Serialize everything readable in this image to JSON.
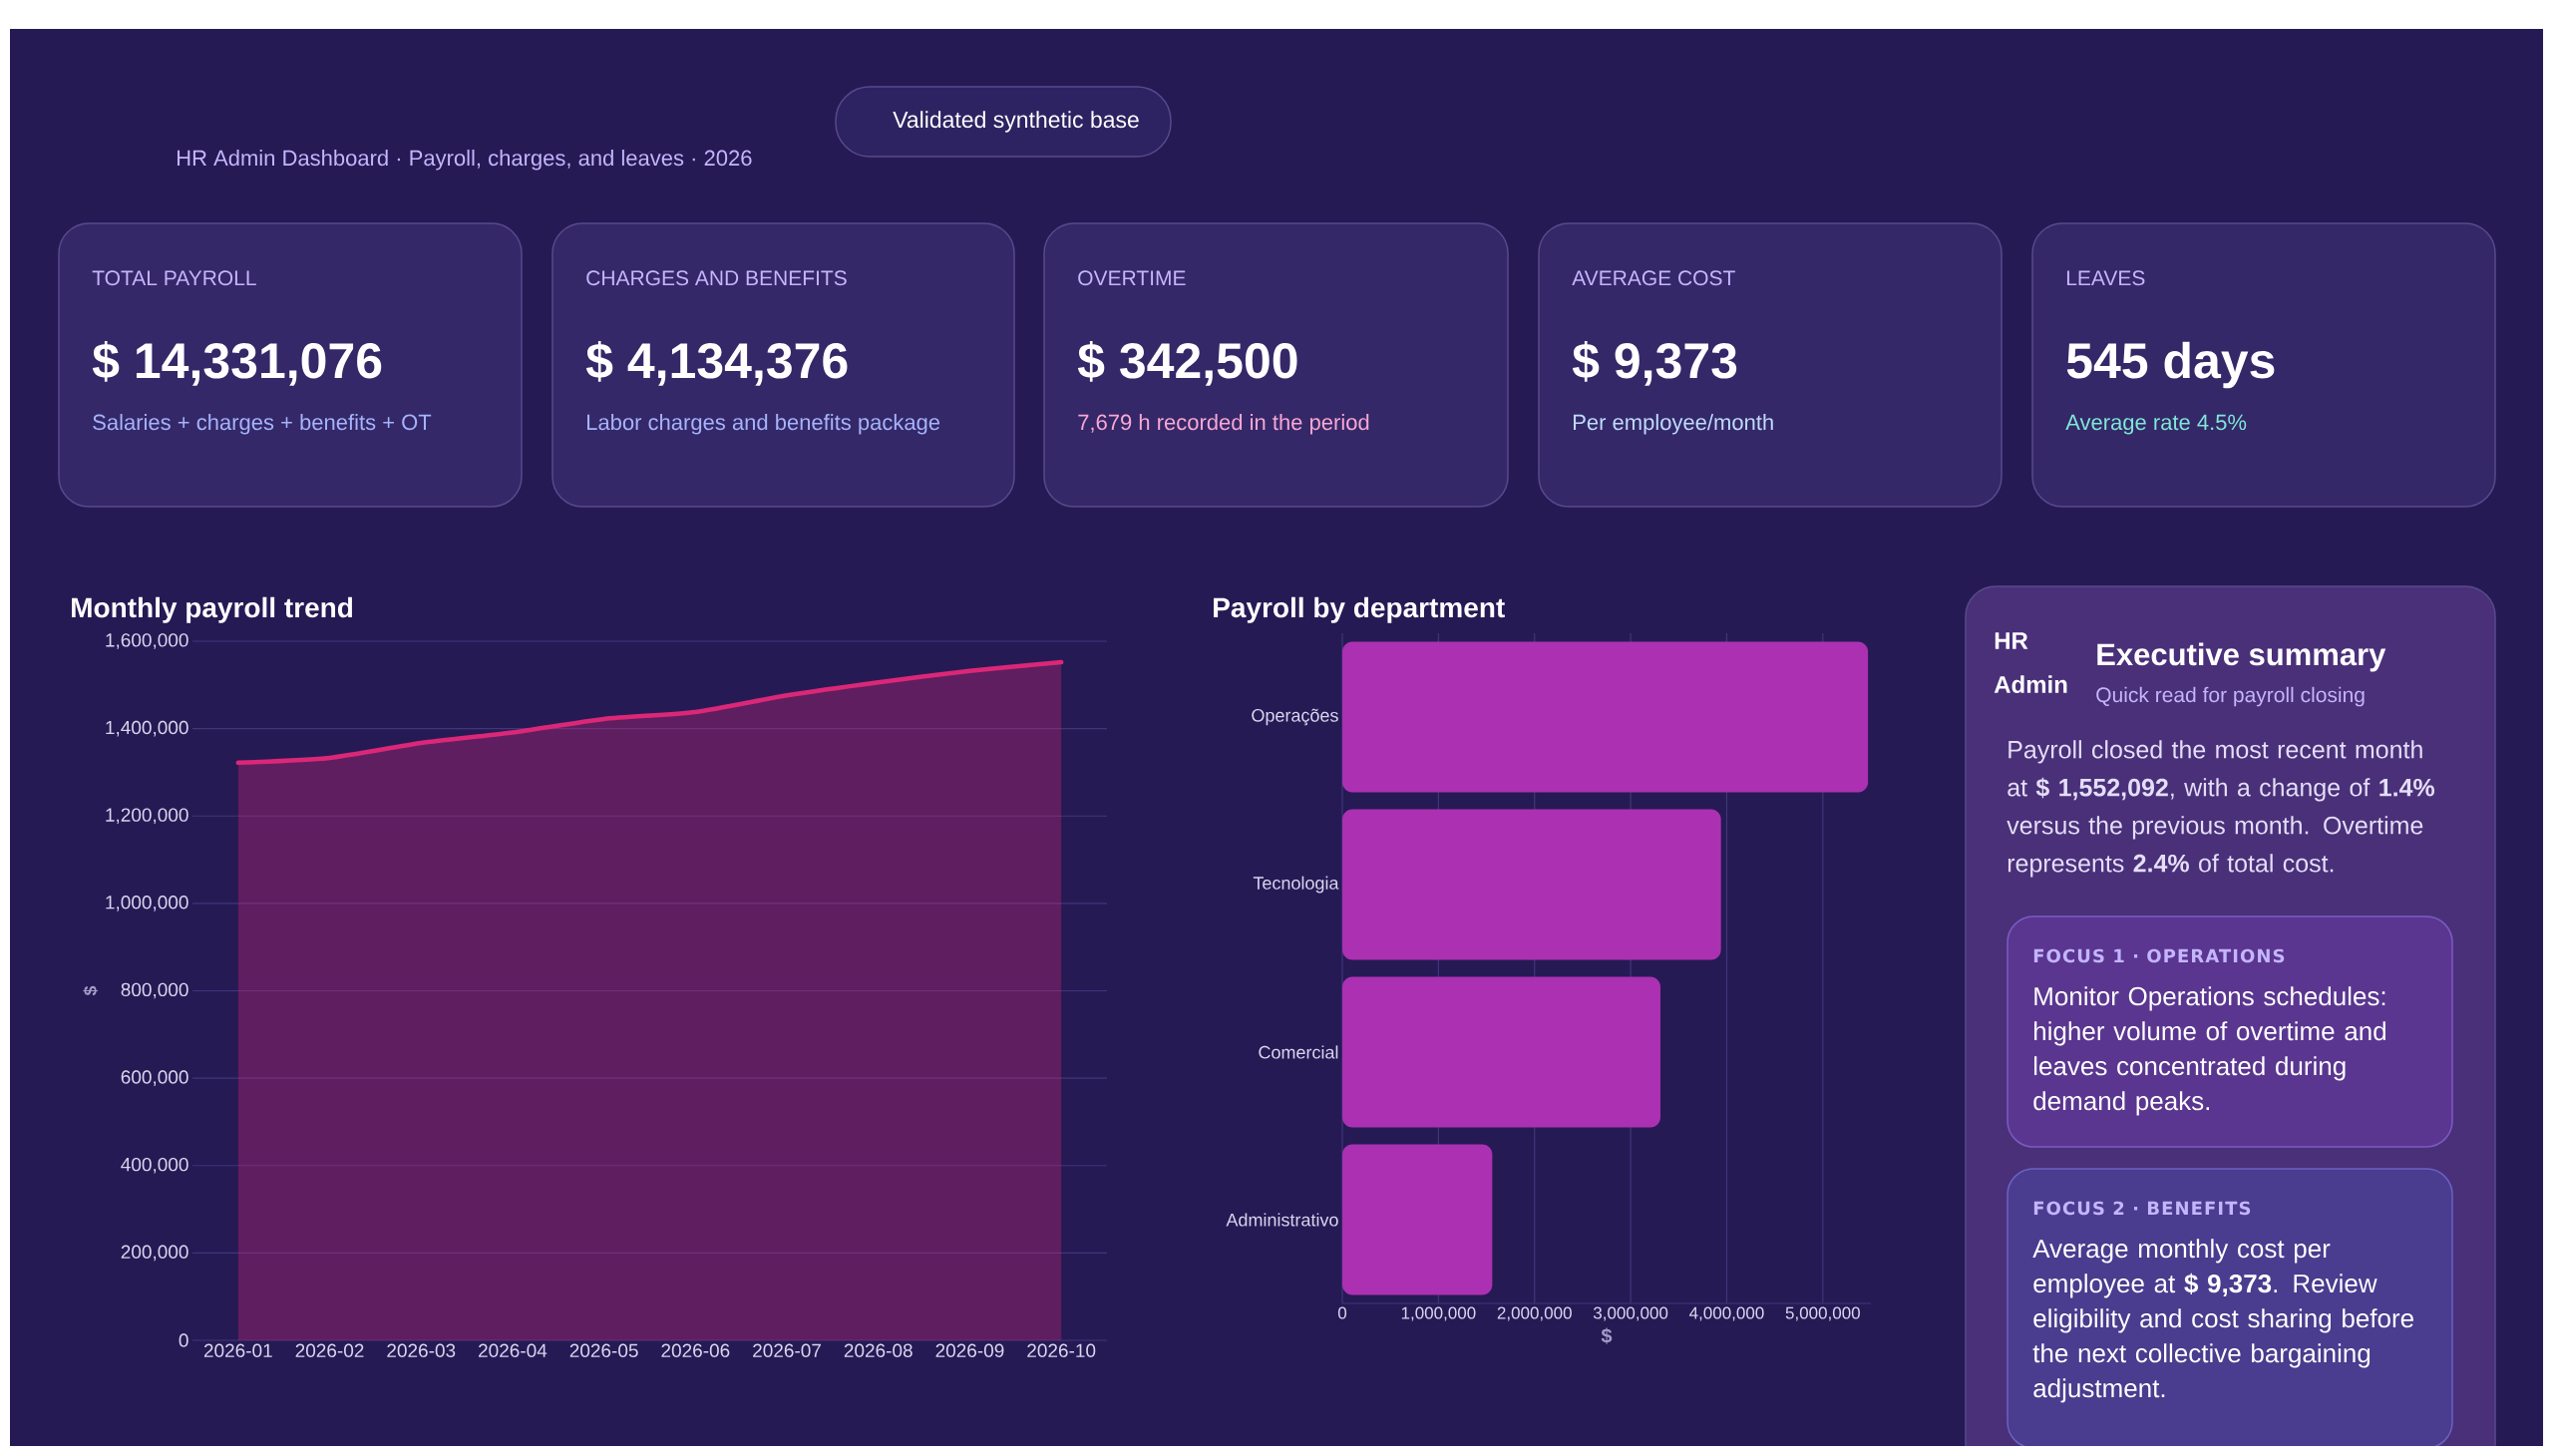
{
  "chart_data": [
    {
      "type": "other",
      "subtitle": "HR Admin Dashboard · Payroll, charges, and leaves · 2026",
      "annotations": [
        "Validated synthetic base"
      ]
    },
    {
      "type": "other",
      "title": "TOTAL PAYROLL",
      "annotations": [
        "$ 14,331,076",
        "Salaries + charges + benefits + OT"
      ]
    },
    {
      "type": "other",
      "title": "CHARGES AND BENEFITS",
      "annotations": [
        "$ 4,134,376",
        "Labor charges and benefits package"
      ]
    },
    {
      "type": "other",
      "title": "OVERTIME",
      "annotations": [
        "$ 342,500",
        "7,679 h recorded in the period"
      ]
    },
    {
      "type": "other",
      "title": "AVERAGE COST",
      "annotations": [
        "$ 9,373",
        "Per employee/month"
      ]
    },
    {
      "type": "other",
      "title": "LEAVES",
      "annotations": [
        "545 days",
        "Average rate 4.5%"
      ]
    },
    {
      "type": "area",
      "title": "Monthly payroll trend",
      "ylabel": "$",
      "categories": [
        "2026-01",
        "2026-02",
        "2026-03",
        "2026-04",
        "2026-05",
        "2026-06",
        "2026-07",
        "2026-08",
        "2026-09",
        "2026-10"
      ],
      "values": [
        1322000,
        1333000,
        1367000,
        1391000,
        1422000,
        1438000,
        1476000,
        1506000,
        1532000,
        1552000
      ],
      "color": "#db2777",
      "ylim": [
        0,
        1600000
      ],
      "yticks": [
        0,
        {
          "value": 200000,
          "label": "200,000"
        },
        {
          "value": 400000,
          "label": "400,000"
        },
        {
          "value": 600000,
          "label": "600,000"
        },
        {
          "value": 800000,
          "label": "800,000"
        },
        {
          "value": 1000000,
          "label": "1,000,000"
        },
        {
          "value": 1200000,
          "label": "1,200,000"
        },
        {
          "value": 1400000,
          "label": "1,400,000"
        },
        {
          "value": 1600000,
          "label": "1,600,000"
        }
      ],
      "grid": "y"
    },
    {
      "type": "bar",
      "orientation": "horizontal",
      "title": "Payroll by department",
      "xlabel": "$",
      "categories": [
        "Operações",
        "Tecnologia",
        "Comercial",
        "Administrativo"
      ],
      "values": [
        5470000,
        3940000,
        3310000,
        1560000
      ],
      "color": "#ab31b2",
      "xlim": [
        0,
        5500000
      ],
      "xticks": [
        0,
        {
          "value": 1000000,
          "label": "1,000,000"
        },
        {
          "value": 2000000,
          "label": "2,000,000"
        },
        {
          "value": 3000000,
          "label": "3,000,000"
        },
        {
          "value": 4000000,
          "label": "4,000,000"
        },
        {
          "value": 5000000,
          "label": "5,000,000"
        }
      ],
      "grid": "x"
    },
    {
      "type": "other",
      "title": "Executive summary",
      "subtitle": "Quick read for payroll closing",
      "annotations": [
        "HR Admin",
        "Payroll closed the most recent month at **$ 1,552,092**, with a change of **1.4%** versus the previous month. Overtime represents **2.4%** of total cost.",
        "FOCUS 1 · OPERATIONS",
        "Monitor Operations schedules: higher volume of overtime and leaves concentrated during demand peaks.",
        "FOCUS 2 · BENEFITS",
        "Average monthly cost per employee at **$ 9,373**. Review eligibility and cost sharing before the next collective bargaining adjustment."
      ]
    }
  ]
}
